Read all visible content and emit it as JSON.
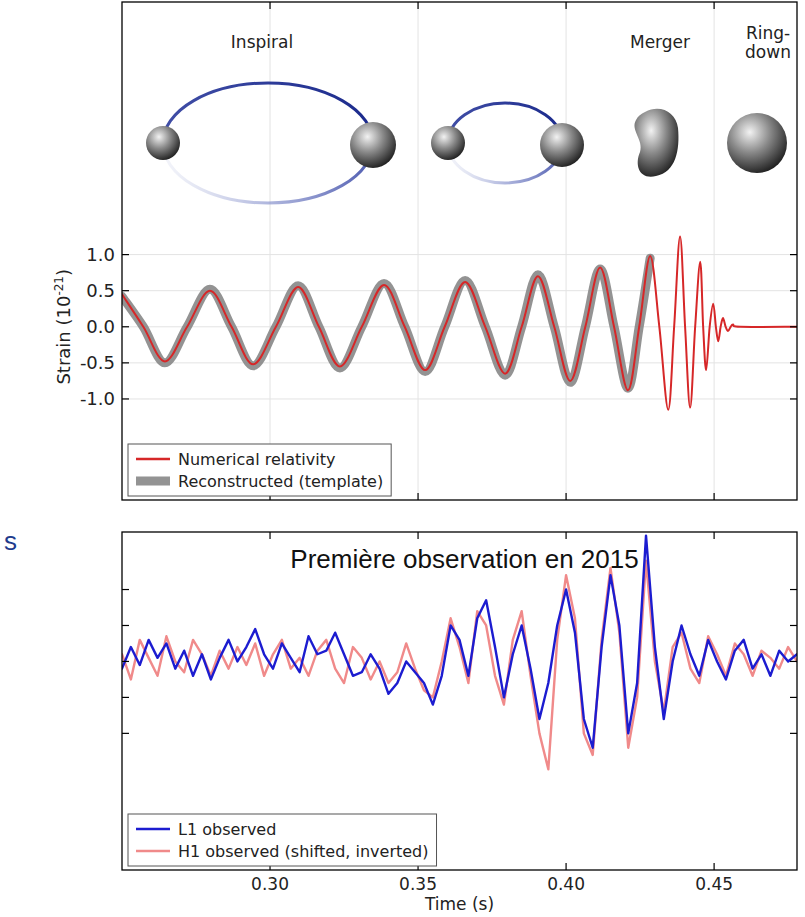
{
  "fragment": "s",
  "chart_data": [
    {
      "type": "line",
      "annotations": [
        "Inspiral",
        "Merger",
        "Ring-down"
      ],
      "y_label": {
        "text": "Strain (10",
        "superscript": "-21",
        "suffix": ")"
      },
      "xlim": [
        0.25,
        0.478
      ],
      "xticks": [
        0.3,
        0.35,
        0.4,
        0.45
      ],
      "ylim": [
        -2.4,
        4.5
      ],
      "yticks": [
        {
          "value": 1,
          "label": "1.0"
        },
        {
          "value": 0.5,
          "label": "0.5"
        },
        {
          "value": 0,
          "label": "0.0"
        },
        {
          "value": -0.5,
          "label": "-0.5"
        },
        {
          "value": -1,
          "label": "-1.0"
        }
      ],
      "grid": true,
      "tick_labels": "y",
      "legend": "lower left",
      "series": [
        {
          "name": "Numerical relativity",
          "color": "#d62728",
          "line_style": "solid",
          "x": [
            0.25,
            0.2572,
            0.2645,
            0.272,
            0.2797,
            0.287,
            0.2943,
            0.302,
            0.3095,
            0.3165,
            0.3236,
            0.331,
            0.3385,
            0.3455,
            0.3524,
            0.359,
            0.3659,
            0.3727,
            0.3794,
            0.385,
            0.3905,
            0.396,
            0.4014,
            0.4065,
            0.4115,
            0.4162,
            0.4209,
            0.4247,
            0.4284,
            0.4315,
            0.4345,
            0.4365,
            0.4385,
            0.4402,
            0.4419,
            0.4436,
            0.4453,
            0.4463,
            0.4473,
            0.4485,
            0.4497,
            0.4506,
            0.4514,
            0.4522,
            0.453,
            0.4539,
            0.4547,
            0.4556,
            0.4564,
            0.4588,
            0.478
          ],
          "values": [
            0.45,
            0.0,
            -0.48,
            0.0,
            0.5,
            0.0,
            -0.52,
            0.0,
            0.55,
            0.0,
            -0.55,
            0.0,
            0.58,
            0.0,
            -0.6,
            0.0,
            0.62,
            0.0,
            -0.65,
            0.0,
            0.7,
            0.0,
            -0.75,
            0.0,
            0.82,
            0.0,
            -0.88,
            0.0,
            0.98,
            0.0,
            -1.15,
            0.0,
            1.25,
            0.0,
            -1.12,
            0.0,
            0.9,
            0.0,
            -0.6,
            0.0,
            0.32,
            0.0,
            -0.2,
            0.0,
            0.12,
            0.0,
            -0.06,
            0.0,
            0.03,
            0.0,
            0.0
          ]
        },
        {
          "name": "Reconstructed (template)",
          "color": "#808080",
          "line_style": "thick",
          "x": [
            0.25,
            0.2572,
            0.2645,
            0.272,
            0.2797,
            0.287,
            0.2943,
            0.302,
            0.3095,
            0.3165,
            0.3236,
            0.331,
            0.3385,
            0.3455,
            0.3524,
            0.359,
            0.3659,
            0.3727,
            0.3794,
            0.385,
            0.3905,
            0.396,
            0.4014,
            0.4065,
            0.4115,
            0.4162,
            0.4209,
            0.4247,
            0.4284
          ],
          "values": [
            0.42,
            0.0,
            -0.5,
            0.0,
            0.52,
            0.0,
            -0.54,
            0.0,
            0.57,
            0.0,
            -0.57,
            0.0,
            0.6,
            0.0,
            -0.62,
            0.0,
            0.64,
            0.0,
            -0.67,
            0.0,
            0.72,
            0.0,
            -0.77,
            0.0,
            0.8,
            0.0,
            -0.85,
            0.0,
            0.95
          ]
        }
      ]
    },
    {
      "type": "line",
      "title": "Première observation en 2015",
      "x_label": "Time (s)",
      "x": [
        0.25,
        0.253,
        0.256,
        0.259,
        0.262,
        0.265,
        0.268,
        0.271,
        0.274,
        0.277,
        0.28,
        0.283,
        0.286,
        0.289,
        0.292,
        0.295,
        0.298,
        0.301,
        0.304,
        0.307,
        0.31,
        0.313,
        0.316,
        0.319,
        0.322,
        0.325,
        0.328,
        0.331,
        0.334,
        0.337,
        0.34,
        0.343,
        0.346,
        0.349,
        0.352,
        0.355,
        0.358,
        0.361,
        0.364,
        0.367,
        0.37,
        0.373,
        0.376,
        0.379,
        0.382,
        0.385,
        0.388,
        0.391,
        0.394,
        0.397,
        0.4,
        0.403,
        0.406,
        0.409,
        0.412,
        0.415,
        0.418,
        0.421,
        0.424,
        0.427,
        0.43,
        0.433,
        0.436,
        0.439,
        0.442,
        0.445,
        0.448,
        0.451,
        0.454,
        0.457,
        0.46,
        0.463,
        0.466,
        0.469,
        0.472,
        0.475,
        0.478
      ],
      "xlim": [
        0.25,
        0.478
      ],
      "xticks": [
        {
          "value": 0.3,
          "label": "0.30"
        },
        {
          "value": 0.35,
          "label": "0.35"
        },
        {
          "value": 0.4,
          "label": "0.40"
        },
        {
          "value": 0.45,
          "label": "0.45"
        }
      ],
      "ylim": [
        -2.9,
        1.8
      ],
      "yticks": [
        -1,
        -0.5,
        0,
        0.5,
        1
      ],
      "grid": false,
      "tick_labels": "x",
      "legend": "lower left",
      "series": [
        {
          "name": "L1 observed",
          "color": "#1c1cd0",
          "line_style": "solid",
          "values": [
            -0.1,
            0.2,
            -0.05,
            0.3,
            0.05,
            0.25,
            -0.1,
            0.15,
            -0.2,
            0.1,
            -0.25,
            0.05,
            0.3,
            0.0,
            0.2,
            0.45,
            0.1,
            -0.1,
            0.25,
            0.05,
            -0.15,
            0.35,
            0.1,
            0.15,
            0.4,
            0.1,
            -0.2,
            -0.15,
            0.1,
            -0.1,
            -0.45,
            -0.3,
            0.0,
            -0.15,
            -0.3,
            -0.6,
            -0.2,
            0.5,
            0.3,
            -0.2,
            0.6,
            0.85,
            0.2,
            -0.5,
            0.1,
            0.5,
            -0.1,
            -0.8,
            -0.3,
            0.5,
            1.0,
            0.4,
            -0.8,
            -1.2,
            0.2,
            1.2,
            0.5,
            -1.0,
            -0.3,
            1.75,
            0.2,
            -0.8,
            0.0,
            0.5,
            0.1,
            -0.2,
            0.3,
            0.0,
            -0.25,
            0.15,
            0.3,
            -0.1,
            0.1,
            -0.2,
            0.15,
            0.0,
            0.1
          ]
        },
        {
          "name": "H1 observed (shifted, inverted)",
          "color": "#f08a8a",
          "line_style": "solid",
          "values": [
            0.1,
            -0.25,
            0.3,
            0.05,
            -0.2,
            0.35,
            0.0,
            -0.15,
            0.3,
            0.1,
            -0.2,
            0.15,
            -0.1,
            0.2,
            -0.05,
            0.25,
            -0.2,
            0.1,
            0.3,
            -0.1,
            0.05,
            -0.2,
            0.15,
            0.3,
            -0.1,
            -0.3,
            0.2,
            0.05,
            -0.25,
            0.0,
            -0.3,
            -0.15,
            0.25,
            -0.1,
            -0.4,
            -0.5,
            0.0,
            0.6,
            0.2,
            -0.3,
            0.7,
            0.5,
            -0.2,
            -0.6,
            0.3,
            0.7,
            -0.2,
            -1.0,
            -1.5,
            0.3,
            1.2,
            0.6,
            -1.0,
            -1.3,
            0.3,
            1.3,
            0.4,
            -1.2,
            -0.5,
            1.4,
            0.0,
            -0.7,
            0.2,
            0.4,
            -0.1,
            -0.3,
            0.35,
            0.1,
            -0.2,
            0.25,
            0.1,
            -0.2,
            0.15,
            0.05,
            -0.1,
            0.2,
            0.0
          ]
        }
      ]
    }
  ]
}
